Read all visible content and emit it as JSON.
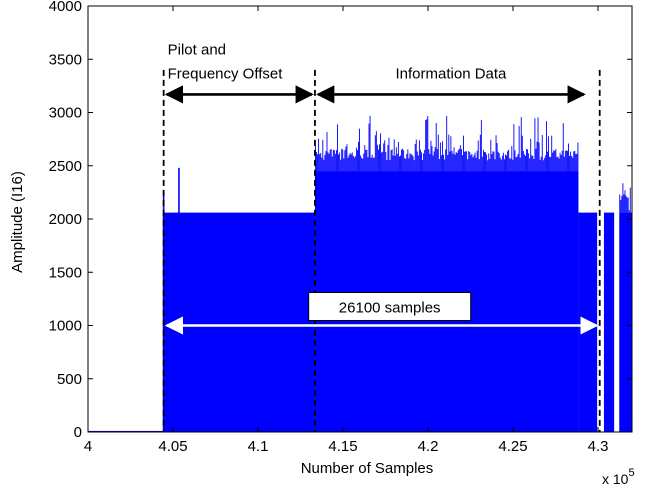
{
  "chart_data": {
    "type": "area",
    "xlabel": "Number of Samples",
    "ylabel": "Amplitude (I16)",
    "x_multiplier_label": "x 10",
    "x_multiplier_exponent": "5",
    "xlim": [
      4.0,
      4.32
    ],
    "ylim": [
      0,
      4000
    ],
    "grid": false,
    "xticks": [
      {
        "value": 4.0,
        "label": "4"
      },
      {
        "value": 4.05,
        "label": "4.05"
      },
      {
        "value": 4.1,
        "label": "4.1"
      },
      {
        "value": 4.15,
        "label": "4.15"
      },
      {
        "value": 4.2,
        "label": "4.2"
      },
      {
        "value": 4.25,
        "label": "4.25"
      },
      {
        "value": 4.3,
        "label": "4.3"
      }
    ],
    "yticks": [
      {
        "value": 0,
        "label": "0"
      },
      {
        "value": 500,
        "label": "500"
      },
      {
        "value": 1000,
        "label": "1000"
      },
      {
        "value": 1500,
        "label": "1500"
      },
      {
        "value": 2000,
        "label": "2000"
      },
      {
        "value": 2500,
        "label": "2500"
      },
      {
        "value": 3000,
        "label": "3000"
      },
      {
        "value": 3500,
        "label": "3500"
      },
      {
        "value": 4000,
        "label": "4000"
      }
    ],
    "series": [
      {
        "color": "#0000ff",
        "segments": [
          {
            "x_start": 4.0,
            "x_end": 4.044,
            "y": 10
          },
          {
            "x_start": 4.044,
            "x_end": 4.1335,
            "y": 2060
          },
          {
            "x_start": 4.1335,
            "x_end": 4.2885,
            "y": 2450,
            "peak_max": 2970
          },
          {
            "x_start": 4.2885,
            "x_end": 4.2995,
            "y": 2060
          },
          {
            "x_start": 4.3035,
            "x_end": 4.3095,
            "y": 2060
          },
          {
            "x_start": 4.3125,
            "x_end": 4.32,
            "y": 2060,
            "peak_max": 2270
          }
        ],
        "spikes": [
          {
            "x": 4.0445,
            "y": 2260
          },
          {
            "x": 4.0535,
            "y": 2480
          }
        ]
      }
    ],
    "markers": [
      {
        "x": 4.0445,
        "style": "dashed"
      },
      {
        "x": 4.1335,
        "style": "dashed"
      },
      {
        "x": 4.301,
        "style": "dashed"
      }
    ],
    "annotations": [
      {
        "lines": [
          "Pilot and",
          "Frequency Offset"
        ],
        "x_from": 4.0445,
        "x_to": 4.1335,
        "arrow_y": 3170
      },
      {
        "lines": [
          "Information Data"
        ],
        "x_from": 4.1335,
        "x_to": 4.2935,
        "arrow_y": 3170
      },
      {
        "lines": [
          "26100 samples"
        ],
        "x_from": 4.0445,
        "x_to": 4.301,
        "arrow_y": 1000,
        "arrow_color": "#ffffff",
        "boxed": true
      }
    ]
  }
}
